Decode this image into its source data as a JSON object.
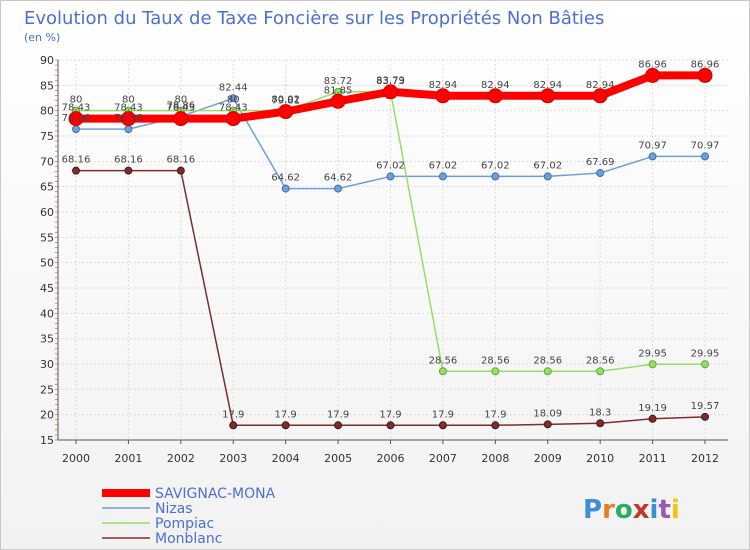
{
  "chart_data": {
    "type": "line",
    "title": "Evolution du Taux de Taxe Foncière sur les Propriétés Non Bâties",
    "subtitle": "(en %)",
    "xlabel": "",
    "ylabel": "",
    "ylim": [
      15,
      90
    ],
    "yticks": [
      15,
      20,
      25,
      30,
      35,
      40,
      45,
      50,
      55,
      60,
      65,
      70,
      75,
      80,
      85,
      90
    ],
    "categories": [
      "2000",
      "2001",
      "2002",
      "2003",
      "2004",
      "2005",
      "2006",
      "2007",
      "2008",
      "2009",
      "2010",
      "2011",
      "2012"
    ],
    "grid": true,
    "legend_position": "bottom-left",
    "series": [
      {
        "name": "SAVIGNAC-MONA",
        "color": "#ff0000",
        "values": [
          78.43,
          78.43,
          78.43,
          78.43,
          79.81,
          81.85,
          83.73,
          82.94,
          82.94,
          82.94,
          82.94,
          86.96,
          86.96
        ],
        "labels": [
          "78.43",
          "78.43",
          "78.43",
          "78.43",
          "79.81",
          "81.85",
          "83.73",
          "82.94",
          "82.94",
          "82.94",
          "82.94",
          "86.96",
          "86.96"
        ]
      },
      {
        "name": "Nizas",
        "color": "#6f9fd8",
        "values": [
          76.36,
          76.36,
          78.86,
          82.44,
          64.62,
          64.62,
          67.02,
          67.02,
          67.02,
          67.02,
          67.69,
          70.97,
          70.97
        ],
        "labels": [
          "76.36",
          "76.36",
          "78.86",
          "82.44",
          "64.62",
          "64.62",
          "67.02",
          "67.02",
          "67.02",
          "67.02",
          "67.69",
          "70.97",
          "70.97"
        ]
      },
      {
        "name": "Pompiac",
        "color": "#99dd66",
        "values": [
          80,
          80,
          80,
          80,
          80.02,
          83.72,
          83.79,
          28.56,
          28.56,
          28.56,
          28.56,
          29.95,
          29.95
        ],
        "labels": [
          "80",
          "80",
          "80",
          "80",
          "80.02",
          "83.72",
          "83.79",
          "28.56",
          "28.56",
          "28.56",
          "28.56",
          "29.95",
          "29.95"
        ]
      },
      {
        "name": "Monblanc",
        "color": "#7a2e2e",
        "values": [
          68.16,
          68.16,
          68.16,
          17.9,
          17.9,
          17.9,
          17.9,
          17.9,
          17.9,
          18.09,
          18.3,
          19.19,
          19.57
        ],
        "labels": [
          "68.16",
          "68.16",
          "68.16",
          "17.9",
          "17.9",
          "17.9",
          "17.9",
          "17.9",
          "17.9",
          "18.09",
          "18.3",
          "19.19",
          "19.57"
        ]
      }
    ]
  },
  "logo": {
    "text": "Proxiti"
  }
}
